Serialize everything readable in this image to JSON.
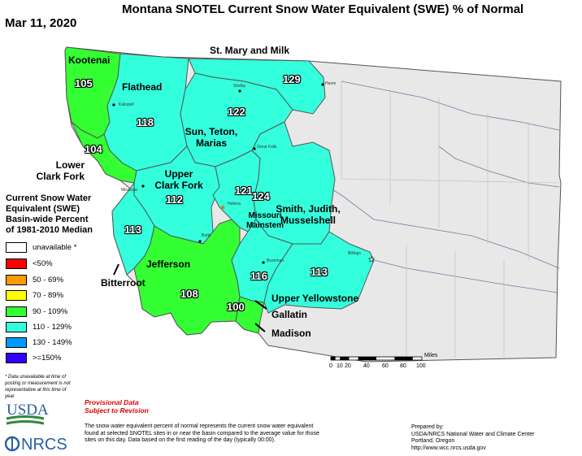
{
  "title": "Montana SNOTEL Current Snow Water Equivalent (SWE) % of Normal",
  "date": "Mar 11, 2020",
  "colors": {
    "unavailable": "#ffffff",
    "lt50": "#ff0000",
    "p50_69": "#ff9900",
    "p70_89": "#ffff00",
    "p90_109": "#33ff33",
    "p110_129": "#33ffdd",
    "p130_149": "#0099ff",
    "gte150": "#3300ff",
    "outside": "#e8e8e8"
  },
  "basins": [
    {
      "name": "Kootenai",
      "value": "105"
    },
    {
      "name": "Flathead",
      "value": "118"
    },
    {
      "name": "St. Mary and Milk",
      "value": "129"
    },
    {
      "name": "Sun, Teton, Marias",
      "value": "122"
    },
    {
      "name": "Lower Clark Fork",
      "value": "104"
    },
    {
      "name": "Upper Clark Fork",
      "value": "112"
    },
    {
      "name": "Missouri Mainstem",
      "value": "121"
    },
    {
      "name": "Smith, Judith, Musselshell",
      "value": "124"
    },
    {
      "name": "Bitterroot",
      "value": "113"
    },
    {
      "name": "Jefferson",
      "value": "108"
    },
    {
      "name": "Upper Yellowstone",
      "value": "113"
    },
    {
      "name": "Gallatin",
      "value": "116"
    },
    {
      "name": "Madison",
      "value": "100"
    }
  ],
  "cities": [
    "Kalispell",
    "Shelby",
    "Havre",
    "Great Falls",
    "Missoula",
    "Helena",
    "Butte",
    "Bozeman",
    "Billings"
  ],
  "legend": {
    "title_lines": [
      "Current Snow Water",
      "Equivalent (SWE)",
      "Basin-wide Percent",
      "of 1981-2010 Median"
    ],
    "items": [
      {
        "label": "unavailable *",
        "color": "#ffffff"
      },
      {
        "label": "<50%",
        "color": "#ff0000"
      },
      {
        "label": "50 - 69%",
        "color": "#ff9900"
      },
      {
        "label": "70 - 89%",
        "color": "#ffff00"
      },
      {
        "label": "90 - 109%",
        "color": "#33ff33"
      },
      {
        "label": "110 - 129%",
        "color": "#33ffdd"
      },
      {
        "label": "130 - 149%",
        "color": "#0099ff"
      },
      {
        "label": ">=150%",
        "color": "#3300ff"
      }
    ]
  },
  "footnote": "* Data unavailable at time of posting or measurement is not representative at this time of year",
  "provisional": [
    "Provisional Data",
    "Subject to Revision"
  ],
  "description": "The snow water equivalent percent of normal represents the current snow water equivalent found at selected SNOTEL sites in or near the basin compared to the average value for those sites on this day. Data based on the first reading of the day (typically 00:00).",
  "prepared": [
    "Prepared by:",
    "USDA/NRCS National Water and Climate Center",
    "Portland, Oregon",
    "http://www.wcc.nrcs.usda.gov"
  ],
  "scale": {
    "unit": "Miles",
    "ticks": [
      "0",
      "10",
      "20",
      "40",
      "60",
      "80",
      "100"
    ]
  },
  "logos": {
    "usda": "USDA",
    "nrcs": "NRCS"
  }
}
